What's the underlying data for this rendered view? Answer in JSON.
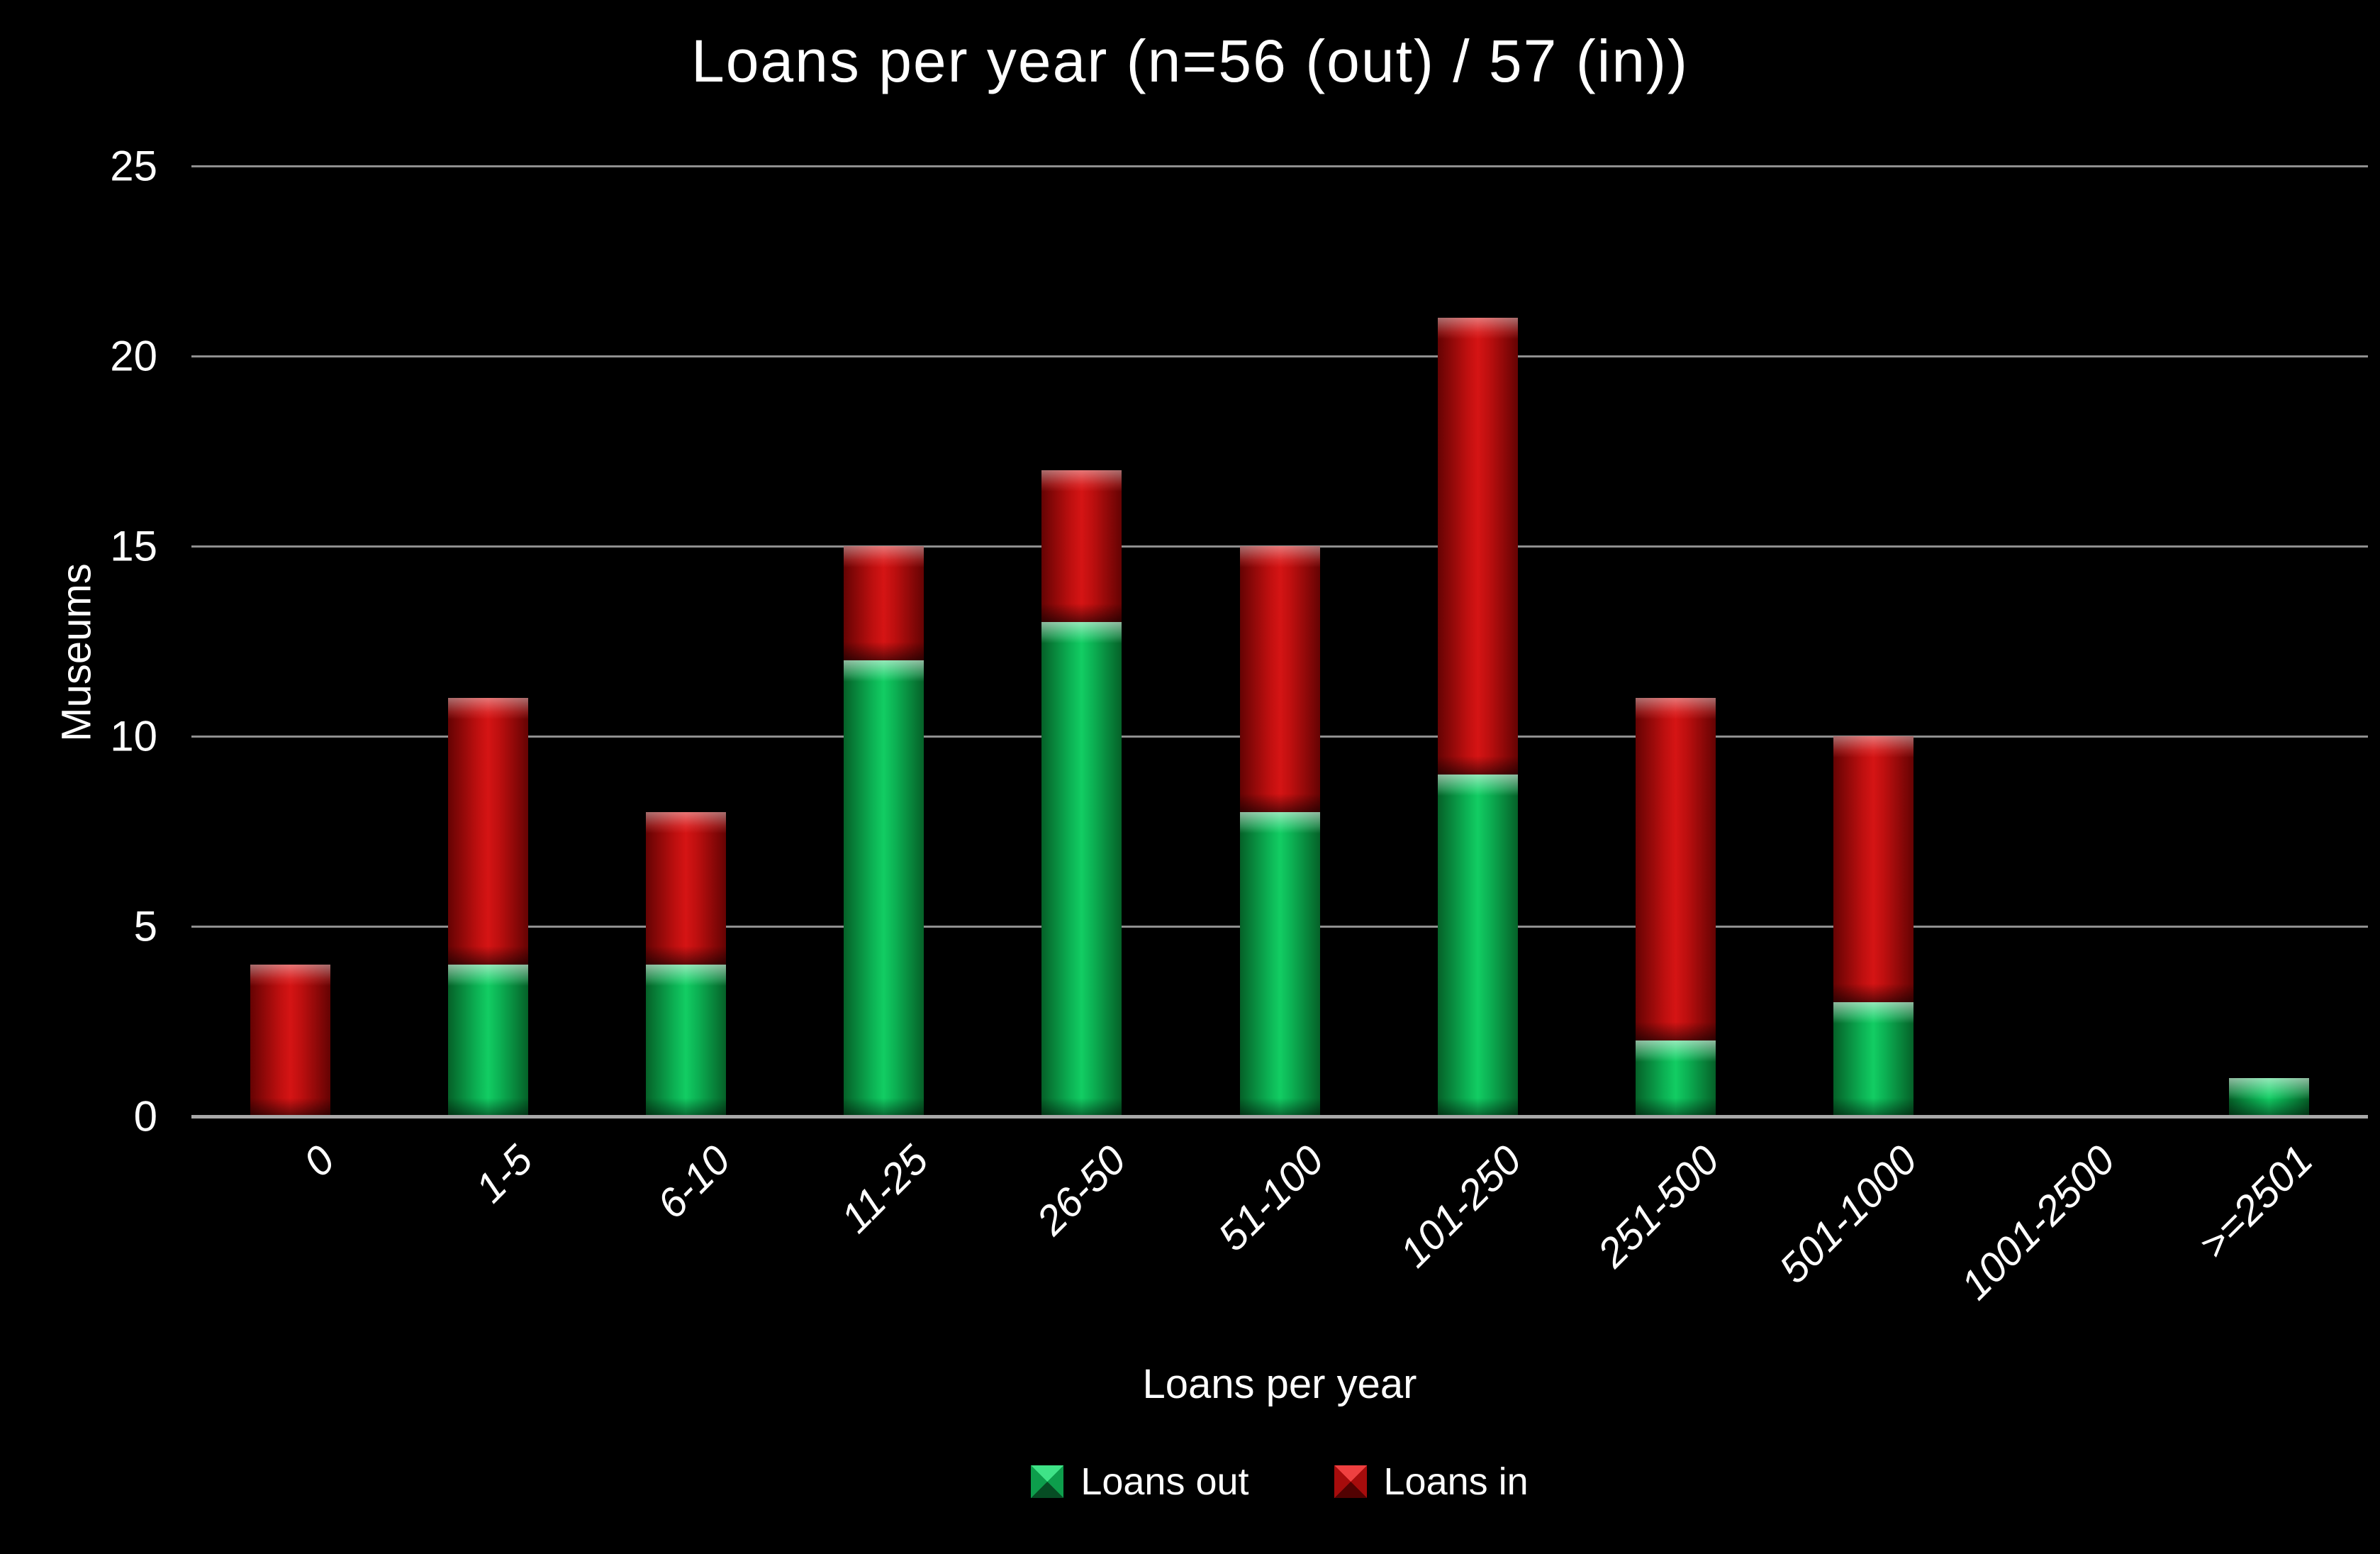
{
  "title": "Loans per year (n=56 (out) / 57 (in))",
  "y_axis": {
    "title": "Museums",
    "ticks": [
      "0",
      "5",
      "10",
      "15",
      "20",
      "25"
    ],
    "max": 25
  },
  "x_axis": {
    "title": "Loans per year"
  },
  "legend": {
    "items": [
      {
        "label": "Loans out",
        "series": "loans_out"
      },
      {
        "label": "Loans in",
        "series": "loans_in"
      }
    ],
    "position": "bottom"
  },
  "chart_data": {
    "type": "bar",
    "stacked": true,
    "title": "Loans per year (n=56 (out) / 57 (in))",
    "xlabel": "Loans per year",
    "ylabel": "Museums",
    "ylim": [
      0,
      25
    ],
    "ytick_step": 5,
    "grid": true,
    "legend_position": "bottom",
    "categories": [
      "0",
      "1-5",
      "6-10",
      "11-25",
      "26-50",
      "51-100",
      "101-250",
      "251-500",
      "501-1000",
      "1001-2500",
      ">=2501"
    ],
    "series": [
      {
        "name": "Loans out",
        "key": "loans_out",
        "total": 56,
        "values": [
          0,
          4,
          4,
          12,
          13,
          8,
          9,
          2,
          3,
          0,
          1
        ]
      },
      {
        "name": "Loans in",
        "key": "loans_in",
        "total": 57,
        "values": [
          4,
          7,
          4,
          3,
          4,
          7,
          12,
          9,
          7,
          0,
          0
        ]
      }
    ]
  },
  "colors": {
    "background": "#000000",
    "text": "#ffffff",
    "gridline": "#8f8f8f",
    "baseline": "#a8a8a8",
    "loans_out": "#0cb254",
    "loans_out_dark": "#056128",
    "loans_out_highlight": "#3fe387",
    "loans_in": "#bd0f0f",
    "loans_in_dark": "#650303",
    "loans_in_highlight": "#ef4040"
  }
}
